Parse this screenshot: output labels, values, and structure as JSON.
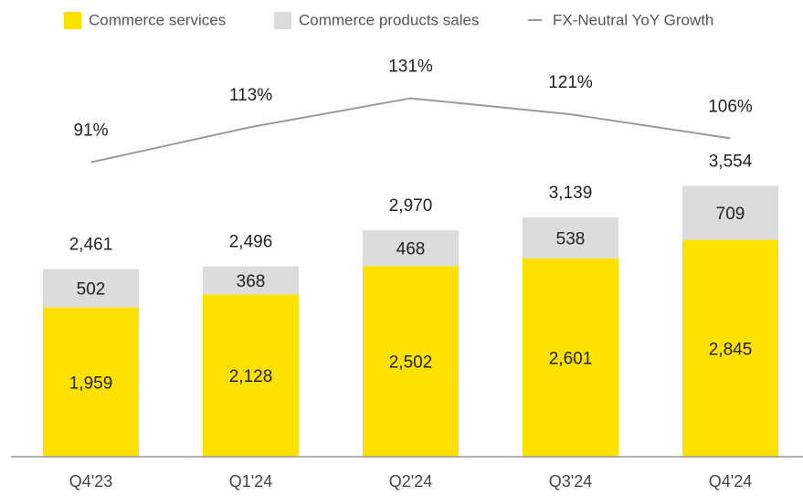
{
  "chart_data": {
    "type": "bar",
    "categories": [
      "Q4'23",
      "Q1'24",
      "Q2'24",
      "Q3'24",
      "Q4'24"
    ],
    "series": [
      {
        "name": "Commerce services",
        "color": "#ffe100",
        "values": [
          1959,
          2128,
          2502,
          2601,
          2845
        ],
        "value_labels": [
          "1,959",
          "2,128",
          "2,502",
          "2,601",
          "2,845"
        ]
      },
      {
        "name": "Commerce products sales",
        "color": "#dcdcdc",
        "values": [
          502,
          368,
          468,
          538,
          709
        ],
        "value_labels": [
          "502",
          "368",
          "468",
          "538",
          "709"
        ]
      },
      {
        "name": "FX-Neutral YoY Growth",
        "type": "line",
        "axis": "y2",
        "color": "#9a9a9a",
        "values": [
          91,
          113,
          131,
          121,
          106
        ],
        "value_labels": [
          "91%",
          "113%",
          "131%",
          "121%",
          "106%"
        ]
      }
    ],
    "totals": {
      "values": [
        2461,
        2496,
        2970,
        3139,
        3554
      ],
      "value_labels": [
        "2,461",
        "2,496",
        "2,970",
        "3,139",
        "3,554"
      ]
    },
    "ylim": [
      0,
      5500
    ],
    "y2lim": [
      -93,
      169
    ]
  }
}
